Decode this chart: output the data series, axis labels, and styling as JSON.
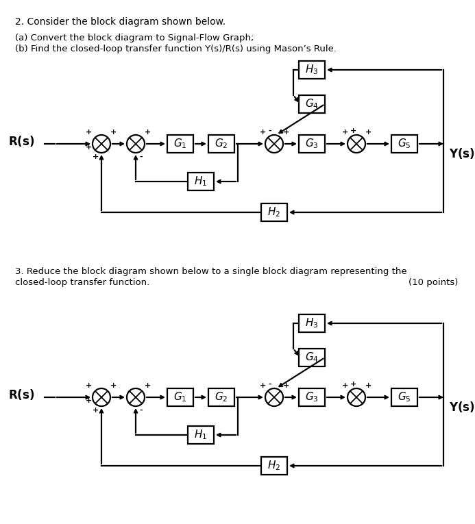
{
  "bg_color": "#ffffff",
  "title1": "2. Consider the block diagram shown below.",
  "sub1a": "(a) Convert the block diagram to Signal-Flow Graph;",
  "sub1b": "(b) Find the closed-loop transfer function Y(s)/R(s) using Mason’s Rule.",
  "title3a": "3. Reduce the block diagram shown below to a single block diagram representing the",
  "title3b": "closed-loop transfer function.",
  "title3c": "(10 points)"
}
